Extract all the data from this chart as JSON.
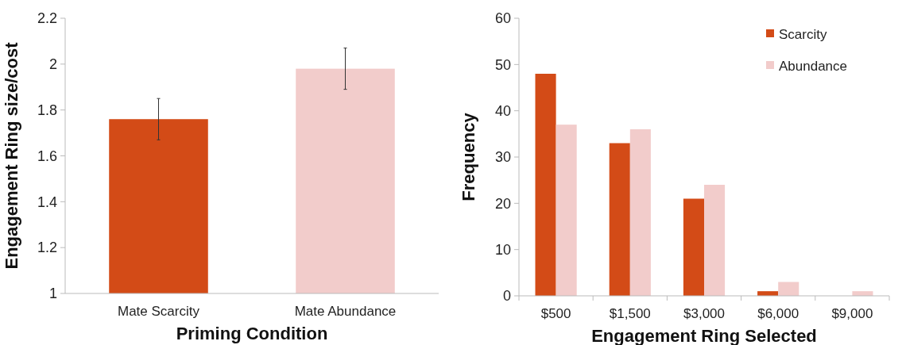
{
  "chart_data": [
    {
      "type": "bar",
      "xlabel": "Priming Condition",
      "ylabel": "Engagement Ring size/cost",
      "categories": [
        "Mate Scarcity",
        "Mate Abundance"
      ],
      "values": [
        1.76,
        1.98
      ],
      "colors": [
        "#d34b17",
        "#f2cccb"
      ],
      "errors": [
        0.09,
        0.09
      ],
      "ylim": [
        1,
        2.2
      ],
      "yticks": [
        1,
        1.2,
        1.4,
        1.6,
        1.8,
        2,
        2.2
      ],
      "grid": false,
      "legend": false
    },
    {
      "type": "bar",
      "xlabel": "Engagement Ring Selected",
      "ylabel": "Frequency",
      "categories": [
        "$500",
        "$1,500",
        "$3,000",
        "$6,000",
        "$9,000"
      ],
      "series": [
        {
          "name": "Scarcity",
          "color": "#d34b17",
          "values": [
            48,
            33,
            21,
            1,
            0
          ]
        },
        {
          "name": "Abundance",
          "color": "#f2cccb",
          "values": [
            37,
            36,
            24,
            3,
            1
          ]
        }
      ],
      "ylim": [
        0,
        60
      ],
      "yticks": [
        0,
        10,
        20,
        30,
        40,
        50,
        60
      ],
      "grid": false,
      "legend": "top right"
    }
  ]
}
